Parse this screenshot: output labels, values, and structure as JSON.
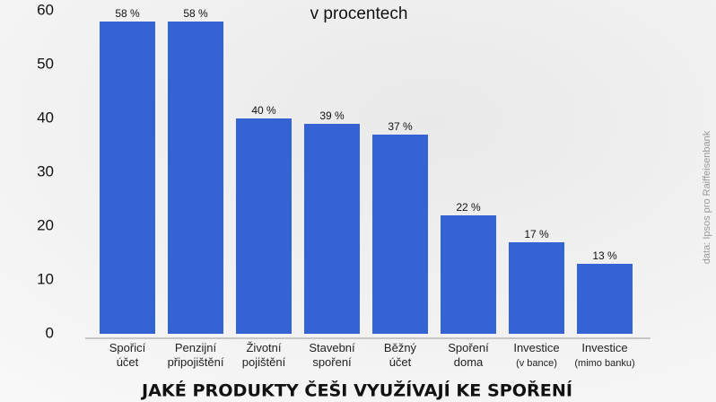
{
  "chart_data": {
    "type": "bar",
    "subtitle": "v procentech",
    "title": "JAKÉ PRODUKTY ČEŠI VYUŽÍVAJÍ KE SPOŘENÍ",
    "source": "data: Ipsos pro Raiffeisenbank",
    "categories": [
      "Spořicí účet",
      "Penzijní připojištění",
      "Životní pojištění",
      "Stavební spoření",
      "Běžný účet",
      "Spoření doma",
      "Investice (v bance)",
      "Investice (mimo banku)"
    ],
    "values": [
      58,
      58,
      40,
      39,
      37,
      22,
      17,
      13
    ],
    "value_labels": [
      "58 %",
      "58 %",
      "40 %",
      "39 %",
      "37 %",
      "22 %",
      "17 %",
      "13 %"
    ],
    "color": "#3563d4",
    "ylim": [
      0,
      60
    ],
    "yticks": [
      0,
      10,
      20,
      30,
      40,
      50,
      60
    ],
    "grid": false
  }
}
